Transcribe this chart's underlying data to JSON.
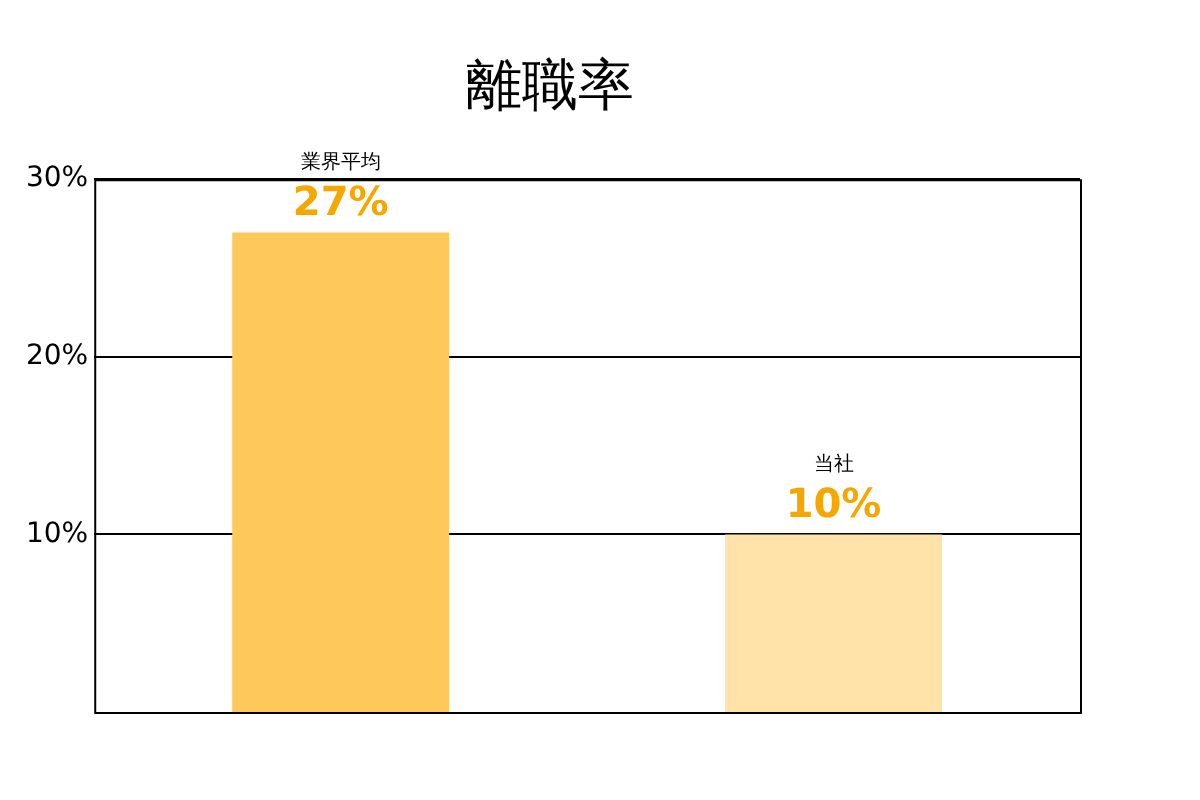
{
  "chart_data": {
    "type": "bar",
    "title": "離職率",
    "categories": [
      "業界平均",
      "当社"
    ],
    "values": [
      27,
      10
    ],
    "colors": [
      "#ffc85a",
      "#ffe3a8"
    ],
    "value_labels": [
      "27%",
      "10%"
    ],
    "ylim": [
      0,
      30
    ],
    "yticks": [
      {
        "value": 10,
        "label": "10%"
      },
      {
        "value": 20,
        "label": "20%"
      },
      {
        "value": 30,
        "label": "30%"
      }
    ],
    "grid": "y",
    "tick_labels": "y",
    "legend": false
  }
}
